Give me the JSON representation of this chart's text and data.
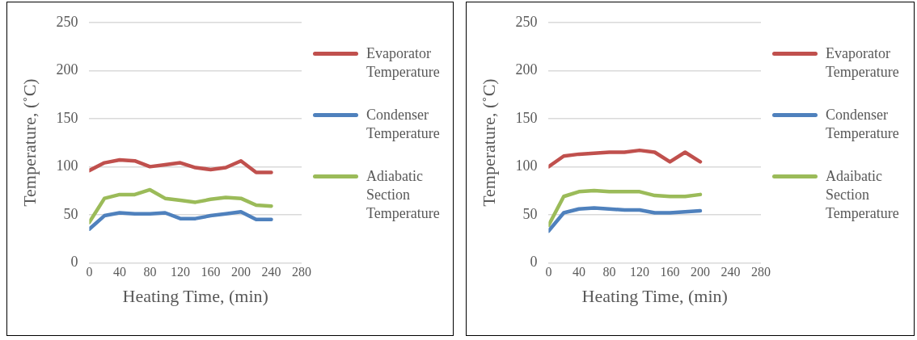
{
  "chart_data": [
    {
      "type": "line",
      "xlabel": "Heating Time, (min)",
      "ylabel": "Temperature, (˚C)",
      "x": [
        0,
        20,
        40,
        60,
        80,
        100,
        120,
        140,
        160,
        180,
        200,
        220,
        240
      ],
      "xlim": [
        0,
        280
      ],
      "xticks": [
        0,
        40,
        80,
        120,
        160,
        200,
        240,
        280
      ],
      "ylim": [
        0,
        250
      ],
      "yticks": [
        0,
        50,
        100,
        150,
        200,
        250
      ],
      "grid": "y",
      "legend": "right",
      "marker": "none",
      "series": [
        {
          "name": "Evaporator Temperature",
          "color": "#c0504d",
          "values": [
            96,
            104,
            107,
            106,
            100,
            102,
            104,
            99,
            97,
            99,
            106,
            94,
            94
          ]
        },
        {
          "name": "Condenser Temperature",
          "color": "#4f81bd",
          "values": [
            35,
            49,
            52,
            51,
            51,
            52,
            46,
            46,
            49,
            51,
            53,
            45,
            45
          ]
        },
        {
          "name": "Adiabatic Section Temperature",
          "color": "#9bbb59",
          "values": [
            42,
            67,
            71,
            71,
            76,
            67,
            65,
            63,
            66,
            68,
            67,
            60,
            59
          ]
        }
      ]
    },
    {
      "type": "line",
      "xlabel": "Heating Time, (min)",
      "ylabel": "Temperature, (˚C)",
      "x": [
        0,
        20,
        40,
        60,
        80,
        100,
        120,
        140,
        160,
        180,
        200
      ],
      "xlim": [
        0,
        280
      ],
      "xticks": [
        0,
        40,
        80,
        120,
        160,
        200,
        240,
        280
      ],
      "ylim": [
        0,
        250
      ],
      "yticks": [
        0,
        50,
        100,
        150,
        200,
        250
      ],
      "grid": "y",
      "legend": "right",
      "marker": "none",
      "series": [
        {
          "name": "Evaporator Temperature",
          "color": "#c0504d",
          "values": [
            100,
            111,
            113,
            114,
            115,
            115,
            117,
            115,
            105,
            115,
            105
          ]
        },
        {
          "name": "Condenser Temperature",
          "color": "#4f81bd",
          "values": [
            33,
            52,
            56,
            57,
            56,
            55,
            55,
            52,
            52,
            53,
            54
          ]
        },
        {
          "name": "Adaibatic Section Temperature",
          "color": "#9bbb59",
          "values": [
            39,
            69,
            74,
            75,
            74,
            74,
            74,
            70,
            69,
            69,
            71
          ]
        }
      ]
    }
  ]
}
